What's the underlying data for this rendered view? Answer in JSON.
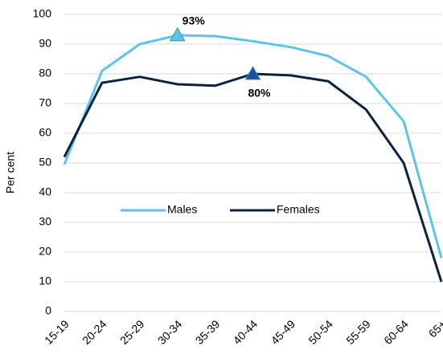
{
  "chart_data": {
    "type": "line",
    "y_label": "Per cent",
    "categories": [
      "15-19",
      "20-24",
      "25-29",
      "30-34",
      "35-39",
      "40-44",
      "45-49",
      "50-54",
      "55-59",
      "60-64",
      "65+"
    ],
    "series": [
      {
        "name": "Males",
        "color": "#5bc5e8",
        "marker_color": "#5bc5e8",
        "values": [
          49.5,
          81,
          90,
          93,
          92.7,
          91,
          89,
          86,
          79,
          64,
          18
        ],
        "value_labels": [
          null,
          null,
          null,
          "93%",
          null,
          null,
          null,
          null,
          null,
          null,
          null
        ]
      },
      {
        "name": "Females",
        "color": "#0c2340",
        "marker_color": "#1f4e9c",
        "values": [
          52,
          77,
          79,
          76.5,
          76,
          80,
          79.5,
          77.5,
          68,
          50,
          10
        ],
        "value_labels": [
          null,
          null,
          null,
          null,
          null,
          "80%",
          null,
          null,
          null,
          null,
          null
        ]
      }
    ],
    "ylim": [
      0,
      100
    ],
    "yticks": [
      0,
      10,
      20,
      30,
      40,
      50,
      60,
      70,
      80,
      90,
      100
    ],
    "grid": true
  }
}
